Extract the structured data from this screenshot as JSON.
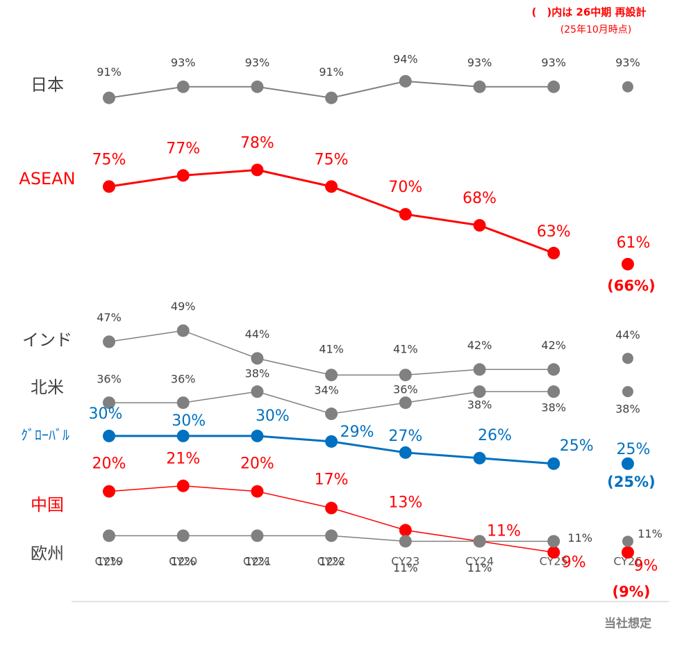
{
  "chart_data": {
    "type": "line",
    "note": "(　)内は 26中期 再設計",
    "note_date": "(25年10月時点)",
    "forecast_label": "当社想定",
    "categories": [
      "CY19",
      "CY20",
      "CY21",
      "CY22",
      "CY23",
      "CY24",
      "CY25",
      "CY26"
    ],
    "ylim": [
      0,
      100
    ],
    "series": [
      {
        "name": "日本",
        "color": "#808080",
        "values": [
          91,
          93,
          93,
          91,
          94,
          93,
          93,
          93
        ],
        "value_labels": [
          "91%",
          "93%",
          "93%",
          "91%",
          "94%",
          "93%",
          "93%",
          "93%"
        ]
      },
      {
        "name": "ASEAN",
        "color": "#ff0000",
        "values": [
          75,
          77,
          78,
          75,
          70,
          68,
          63,
          61
        ],
        "value_labels": [
          "75%",
          "77%",
          "78%",
          "75%",
          "70%",
          "68%",
          "63%",
          "61%"
        ],
        "target": {
          "value": 66,
          "label": "(66%)"
        }
      },
      {
        "name": "インド",
        "color": "#808080",
        "values": [
          47,
          49,
          44,
          41,
          41,
          42,
          42,
          44
        ],
        "value_labels": [
          "47%",
          "49%",
          "44%",
          "41%",
          "41%",
          "42%",
          "42%",
          "44%"
        ]
      },
      {
        "name": "北米",
        "color": "#808080",
        "values": [
          36,
          36,
          38,
          34,
          36,
          38,
          38,
          38
        ],
        "value_labels": [
          "36%",
          "36%",
          "38%",
          "34%",
          "36%",
          "38%",
          "38%",
          "38%"
        ]
      },
      {
        "name": "ｸﾞﾛｰﾊﾞﾙ",
        "color": "#0070c0",
        "values": [
          30,
          30,
          30,
          29,
          27,
          26,
          25,
          25
        ],
        "value_labels": [
          "30%",
          "30%",
          "30%",
          "29%",
          "27%",
          "26%",
          "25%",
          "25%"
        ],
        "target": {
          "value": 25,
          "label": "(25%)"
        }
      },
      {
        "name": "中国",
        "color": "#ff0000",
        "values": [
          20,
          21,
          20,
          17,
          13,
          11,
          9,
          9
        ],
        "value_labels": [
          "20%",
          "21%",
          "20%",
          "17%",
          "13%",
          "11%",
          "9%",
          "9%"
        ],
        "target": {
          "value": 9,
          "label": "(9%)"
        }
      },
      {
        "name": "欧州",
        "color": "#808080",
        "values": [
          12,
          12,
          12,
          12,
          11,
          11,
          11,
          11
        ],
        "value_labels": [
          "12%",
          "12%",
          "12%",
          "12%",
          "11%",
          "11%",
          "11%",
          "11%"
        ]
      }
    ]
  }
}
